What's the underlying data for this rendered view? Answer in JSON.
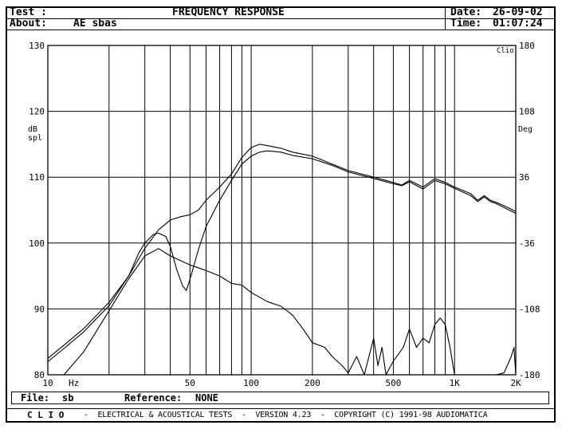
{
  "header": {
    "test_label": "Test :",
    "title": "FREQUENCY RESPONSE",
    "date_label": "Date:",
    "date_value": "26-09-02",
    "about_label": "About:",
    "about_value": "AE sbas",
    "time_label": "Time:",
    "time_value": "01:07:24"
  },
  "file_bar": {
    "file_label": "File:",
    "file_value": "sb",
    "reference_label": "Reference:",
    "reference_value": "NONE"
  },
  "footer": {
    "brand": "C L I O",
    "text": "-  ELECTRICAL & ACOUSTICAL TESTS  -  VERSION 4.23  -  COPYRIGHT (C) 1991-98 AUDIOMATICA"
  },
  "chart_data": {
    "type": "line",
    "watermark": "Clio",
    "xscale": "log",
    "xlim": [
      10,
      2000
    ],
    "ylim": [
      80,
      130
    ],
    "y2lim": [
      -180,
      180
    ],
    "grid": true,
    "left_axis_label": [
      "dB",
      "spl"
    ],
    "right_axis_label": "Deg",
    "x_unit_label": "Hz",
    "x_tick_labels": [
      {
        "value": 10,
        "label": "10"
      },
      {
        "value": 50,
        "label": "50"
      },
      {
        "value": 100,
        "label": "100"
      },
      {
        "value": 200,
        "label": "200"
      },
      {
        "value": 500,
        "label": "500"
      },
      {
        "value": 1000,
        "label": "1K"
      },
      {
        "value": 2000,
        "label": "2K"
      }
    ],
    "y_tick_labels": [
      "80",
      "90",
      "100",
      "110",
      "120",
      "130"
    ],
    "y2_tick_labels": [
      "-180",
      "-108",
      "-36",
      "36",
      "108",
      "180"
    ],
    "series": [
      {
        "axis": "left",
        "points": [
          [
            10,
            82.5
          ],
          [
            12,
            84.5
          ],
          [
            15,
            87
          ],
          [
            20,
            91
          ],
          [
            25,
            95
          ],
          [
            30,
            99.2
          ],
          [
            35,
            102
          ],
          [
            40,
            103.5
          ],
          [
            45,
            104
          ],
          [
            50,
            104.3
          ],
          [
            55,
            105
          ],
          [
            60,
            106.5
          ],
          [
            70,
            108.5
          ],
          [
            80,
            110.5
          ],
          [
            90,
            113
          ],
          [
            100,
            114.5
          ],
          [
            110,
            115
          ],
          [
            120,
            114.8
          ],
          [
            140,
            114.4
          ],
          [
            160,
            113.8
          ],
          [
            200,
            113.2
          ],
          [
            250,
            112
          ],
          [
            300,
            111
          ],
          [
            400,
            110
          ],
          [
            500,
            109.2
          ],
          [
            550,
            108.8
          ],
          [
            600,
            109.5
          ],
          [
            700,
            108.5
          ],
          [
            800,
            109.8
          ],
          [
            900,
            109.2
          ],
          [
            1000,
            108.5
          ],
          [
            1200,
            107.5
          ],
          [
            1300,
            106.5
          ],
          [
            1400,
            107.2
          ],
          [
            1500,
            106.5
          ],
          [
            1600,
            106.2
          ],
          [
            1800,
            105.5
          ],
          [
            2000,
            104.8
          ]
        ]
      },
      {
        "axis": "left",
        "points": [
          [
            10,
            82
          ],
          [
            12,
            84
          ],
          [
            15,
            86.5
          ],
          [
            20,
            90.5
          ],
          [
            25,
            95
          ],
          [
            28,
            98.5
          ],
          [
            30,
            100
          ],
          [
            33,
            101.3
          ],
          [
            35,
            101.5
          ],
          [
            38,
            101
          ],
          [
            40,
            99.5
          ],
          [
            43,
            96
          ],
          [
            46,
            93.5
          ],
          [
            48,
            92.8
          ],
          [
            50,
            94.5
          ],
          [
            55,
            99
          ],
          [
            60,
            102.5
          ],
          [
            70,
            106.5
          ],
          [
            80,
            109.5
          ],
          [
            90,
            112
          ],
          [
            100,
            113.2
          ],
          [
            110,
            113.8
          ],
          [
            120,
            114
          ],
          [
            140,
            113.8
          ],
          [
            160,
            113.3
          ],
          [
            200,
            112.8
          ],
          [
            250,
            111.8
          ],
          [
            300,
            110.8
          ],
          [
            400,
            109.8
          ],
          [
            500,
            109
          ],
          [
            550,
            108.7
          ],
          [
            600,
            109.3
          ],
          [
            700,
            108.2
          ],
          [
            800,
            109.5
          ],
          [
            900,
            109
          ],
          [
            1000,
            108.3
          ],
          [
            1200,
            107.2
          ],
          [
            1300,
            106.3
          ],
          [
            1400,
            107
          ],
          [
            1500,
            106.3
          ],
          [
            1600,
            106
          ],
          [
            1800,
            105.2
          ],
          [
            2000,
            104.5
          ]
        ]
      },
      {
        "axis": "right",
        "points": [
          [
            12,
            -180
          ],
          [
            15,
            -155
          ],
          [
            20,
            -110
          ],
          [
            25,
            -75
          ],
          [
            30,
            -50
          ],
          [
            35,
            -42
          ],
          [
            40,
            -50
          ],
          [
            50,
            -60
          ],
          [
            60,
            -66
          ],
          [
            70,
            -72
          ],
          [
            80,
            -80
          ],
          [
            90,
            -82
          ],
          [
            100,
            -90
          ],
          [
            120,
            -100
          ],
          [
            140,
            -105
          ],
          [
            160,
            -115
          ],
          [
            180,
            -130
          ],
          [
            200,
            -145
          ],
          [
            230,
            -150
          ],
          [
            250,
            -160
          ],
          [
            280,
            -170
          ],
          [
            300,
            -178
          ],
          [
            330,
            -160
          ],
          [
            360,
            -180
          ],
          [
            400,
            -140
          ],
          [
            420,
            -170
          ],
          [
            440,
            -150
          ],
          [
            460,
            -180
          ],
          [
            500,
            -165
          ],
          [
            560,
            -150
          ],
          [
            600,
            -130
          ],
          [
            650,
            -150
          ],
          [
            700,
            -140
          ],
          [
            750,
            -145
          ],
          [
            800,
            -125
          ],
          [
            850,
            -118
          ],
          [
            900,
            -125
          ],
          [
            950,
            -150
          ],
          [
            1000,
            -180
          ],
          [
            1600,
            -180
          ],
          [
            1750,
            -178
          ],
          [
            1900,
            -160
          ],
          [
            1960,
            -150
          ],
          [
            2000,
            -180
          ]
        ]
      }
    ]
  }
}
